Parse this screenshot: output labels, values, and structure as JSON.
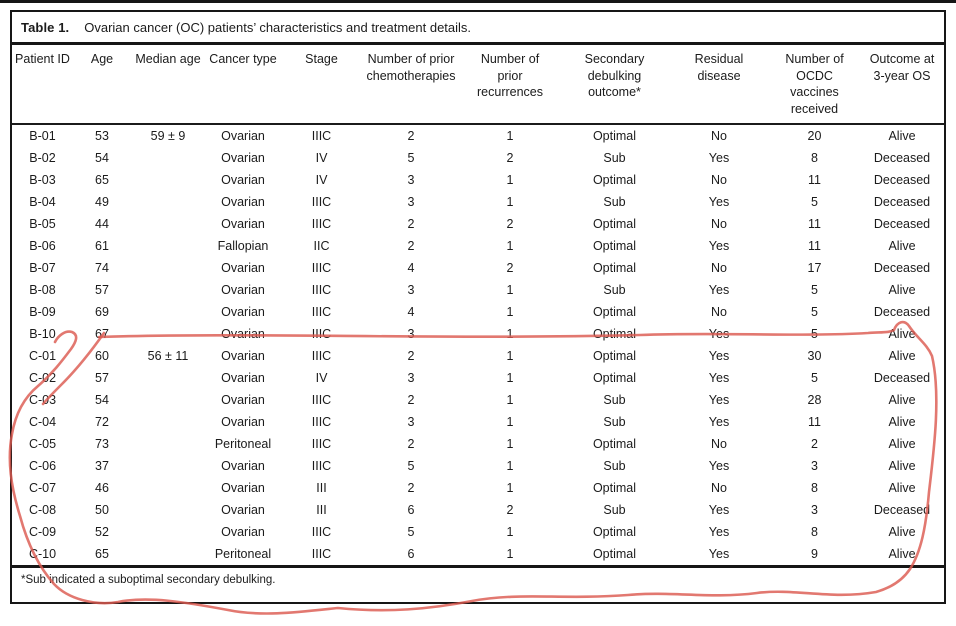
{
  "title": {
    "label": "Table 1.",
    "text": "Ovarian cancer (OC) patients’ characteristics and treatment details."
  },
  "table": {
    "columns": [
      "Patient ID",
      "Age",
      "Median age",
      "Cancer type",
      "Stage",
      "Number of prior\nchemotherapies",
      "Number of\nprior\nrecurrences",
      "Secondary\ndebulking\noutcome*",
      "Residual\ndisease",
      "Number of\nOCDC\nvaccines\nreceived",
      "Outcome at\n3-year OS"
    ],
    "rows": [
      [
        "B-01",
        "53",
        "59 ± 9",
        "Ovarian",
        "IIIC",
        "2",
        "1",
        "Optimal",
        "No",
        "20",
        "Alive"
      ],
      [
        "B-02",
        "54",
        "",
        "Ovarian",
        "IV",
        "5",
        "2",
        "Sub",
        "Yes",
        "8",
        "Deceased"
      ],
      [
        "B-03",
        "65",
        "",
        "Ovarian",
        "IV",
        "3",
        "1",
        "Optimal",
        "No",
        "11",
        "Deceased"
      ],
      [
        "B-04",
        "49",
        "",
        "Ovarian",
        "IIIC",
        "3",
        "1",
        "Sub",
        "Yes",
        "5",
        "Deceased"
      ],
      [
        "B-05",
        "44",
        "",
        "Ovarian",
        "IIIC",
        "2",
        "2",
        "Optimal",
        "No",
        "11",
        "Deceased"
      ],
      [
        "B-06",
        "61",
        "",
        "Fallopian",
        "IIC",
        "2",
        "1",
        "Optimal",
        "Yes",
        "11",
        "Alive"
      ],
      [
        "B-07",
        "74",
        "",
        "Ovarian",
        "IIIC",
        "4",
        "2",
        "Optimal",
        "No",
        "17",
        "Deceased"
      ],
      [
        "B-08",
        "57",
        "",
        "Ovarian",
        "IIIC",
        "3",
        "1",
        "Sub",
        "Yes",
        "5",
        "Alive"
      ],
      [
        "B-09",
        "69",
        "",
        "Ovarian",
        "IIIC",
        "4",
        "1",
        "Optimal",
        "No",
        "5",
        "Deceased"
      ],
      [
        "B-10",
        "67",
        "",
        "Ovarian",
        "IIIC",
        "3",
        "1",
        "Optimal",
        "Yes",
        "5",
        "Alive"
      ],
      [
        "C-01",
        "60",
        "56 ± 11",
        "Ovarian",
        "IIIC",
        "2",
        "1",
        "Optimal",
        "Yes",
        "30",
        "Alive"
      ],
      [
        "C-02",
        "57",
        "",
        "Ovarian",
        "IV",
        "3",
        "1",
        "Optimal",
        "Yes",
        "5",
        "Deceased"
      ],
      [
        "C-03",
        "54",
        "",
        "Ovarian",
        "IIIC",
        "2",
        "1",
        "Sub",
        "Yes",
        "28",
        "Alive"
      ],
      [
        "C-04",
        "72",
        "",
        "Ovarian",
        "IIIC",
        "3",
        "1",
        "Sub",
        "Yes",
        "11",
        "Alive"
      ],
      [
        "C-05",
        "73",
        "",
        "Peritoneal",
        "IIIC",
        "2",
        "1",
        "Optimal",
        "No",
        "2",
        "Alive"
      ],
      [
        "C-06",
        "37",
        "",
        "Ovarian",
        "IIIC",
        "5",
        "1",
        "Sub",
        "Yes",
        "3",
        "Alive"
      ],
      [
        "C-07",
        "46",
        "",
        "Ovarian",
        "III",
        "2",
        "1",
        "Optimal",
        "No",
        "8",
        "Alive"
      ],
      [
        "C-08",
        "50",
        "",
        "Ovarian",
        "III",
        "6",
        "2",
        "Sub",
        "Yes",
        "3",
        "Deceased"
      ],
      [
        "C-09",
        "52",
        "",
        "Ovarian",
        "IIIC",
        "5",
        "1",
        "Optimal",
        "Yes",
        "8",
        "Alive"
      ],
      [
        "C-10",
        "65",
        "",
        "Peritoneal",
        "IIIC",
        "6",
        "1",
        "Optimal",
        "Yes",
        "9",
        "Alive"
      ]
    ]
  },
  "footnote": "*Sub indicated a suboptimal secondary debulking.",
  "annotation": {
    "description": "hand-drawn red pen ellipse circling rows B-10 through C-10"
  },
  "colors": {
    "rule": "#161616",
    "text": "#1b1b1b",
    "annotation_red": "#dc5a50"
  }
}
